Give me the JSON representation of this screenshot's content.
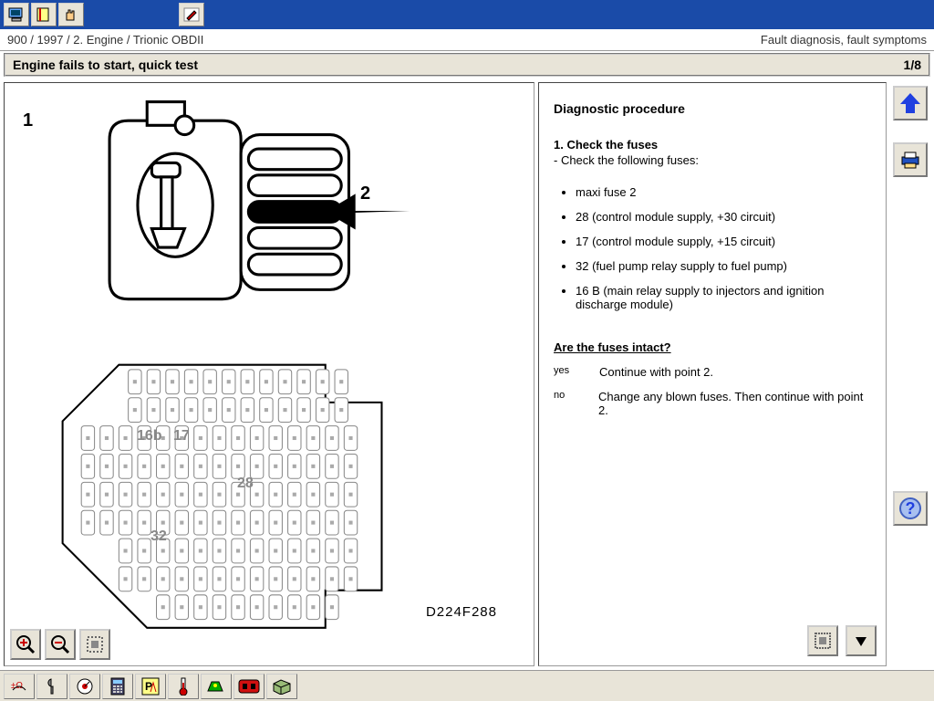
{
  "colors": {
    "toolbar_bg": "#1a4ba8",
    "panel_bg": "#e8e4d8",
    "accent_blue": "#2040e0",
    "accent_red": "#d01010",
    "fuse_label": "#888888"
  },
  "top_toolbar": {
    "buttons": [
      "computer-icon",
      "note-icon",
      "hand-icon"
    ],
    "edit_button": "pencil-icon"
  },
  "breadcrumb": {
    "path": "900 / 1997 / 2. Engine / Trionic OBDII",
    "right": "Fault diagnosis, fault symptoms"
  },
  "title": {
    "text": "Engine fails to start, quick test",
    "page": "1/8"
  },
  "diagram": {
    "label1": "1",
    "label2": "2",
    "fuse_labels": {
      "16b": "16b",
      "17": "17",
      "28": "28",
      "32": "32"
    },
    "code": "D224F288"
  },
  "left_buttons": {
    "zoom_in": "zoom-in-icon",
    "zoom_out": "zoom-out-icon",
    "fit": "fit-icon"
  },
  "procedure": {
    "heading": "Diagnostic procedure",
    "step1_title": "1. Check the fuses",
    "step1_intro": "-    Check the following fuses:",
    "fuses": [
      "maxi fuse 2",
      "28 (control module supply, +30 circuit)",
      "17 (control module supply, +15 circuit)",
      "32 (fuel pump relay supply to fuel pump)",
      "16 B (main relay supply to injectors and ignition discharge module)"
    ],
    "question": "Are the fuses intact?",
    "yes_label": "yes",
    "yes_text": "Continue with point 2.",
    "no_label": "no",
    "no_text": "Change any blown fuses. Then continue with point 2."
  },
  "side": {
    "up": "up-arrow-icon",
    "print": "printer-icon",
    "help": "help-icon"
  },
  "right_bottom": {
    "grid": "grid-icon",
    "down": "down-arrow-icon"
  },
  "bottom_toolbar": {
    "buttons": [
      "ohmmeter-icon",
      "wrench-icon",
      "dial-icon",
      "calc-icon",
      "chart-icon",
      "thermometer-icon",
      "sensor-icon",
      "obd-icon",
      "box-icon"
    ]
  }
}
